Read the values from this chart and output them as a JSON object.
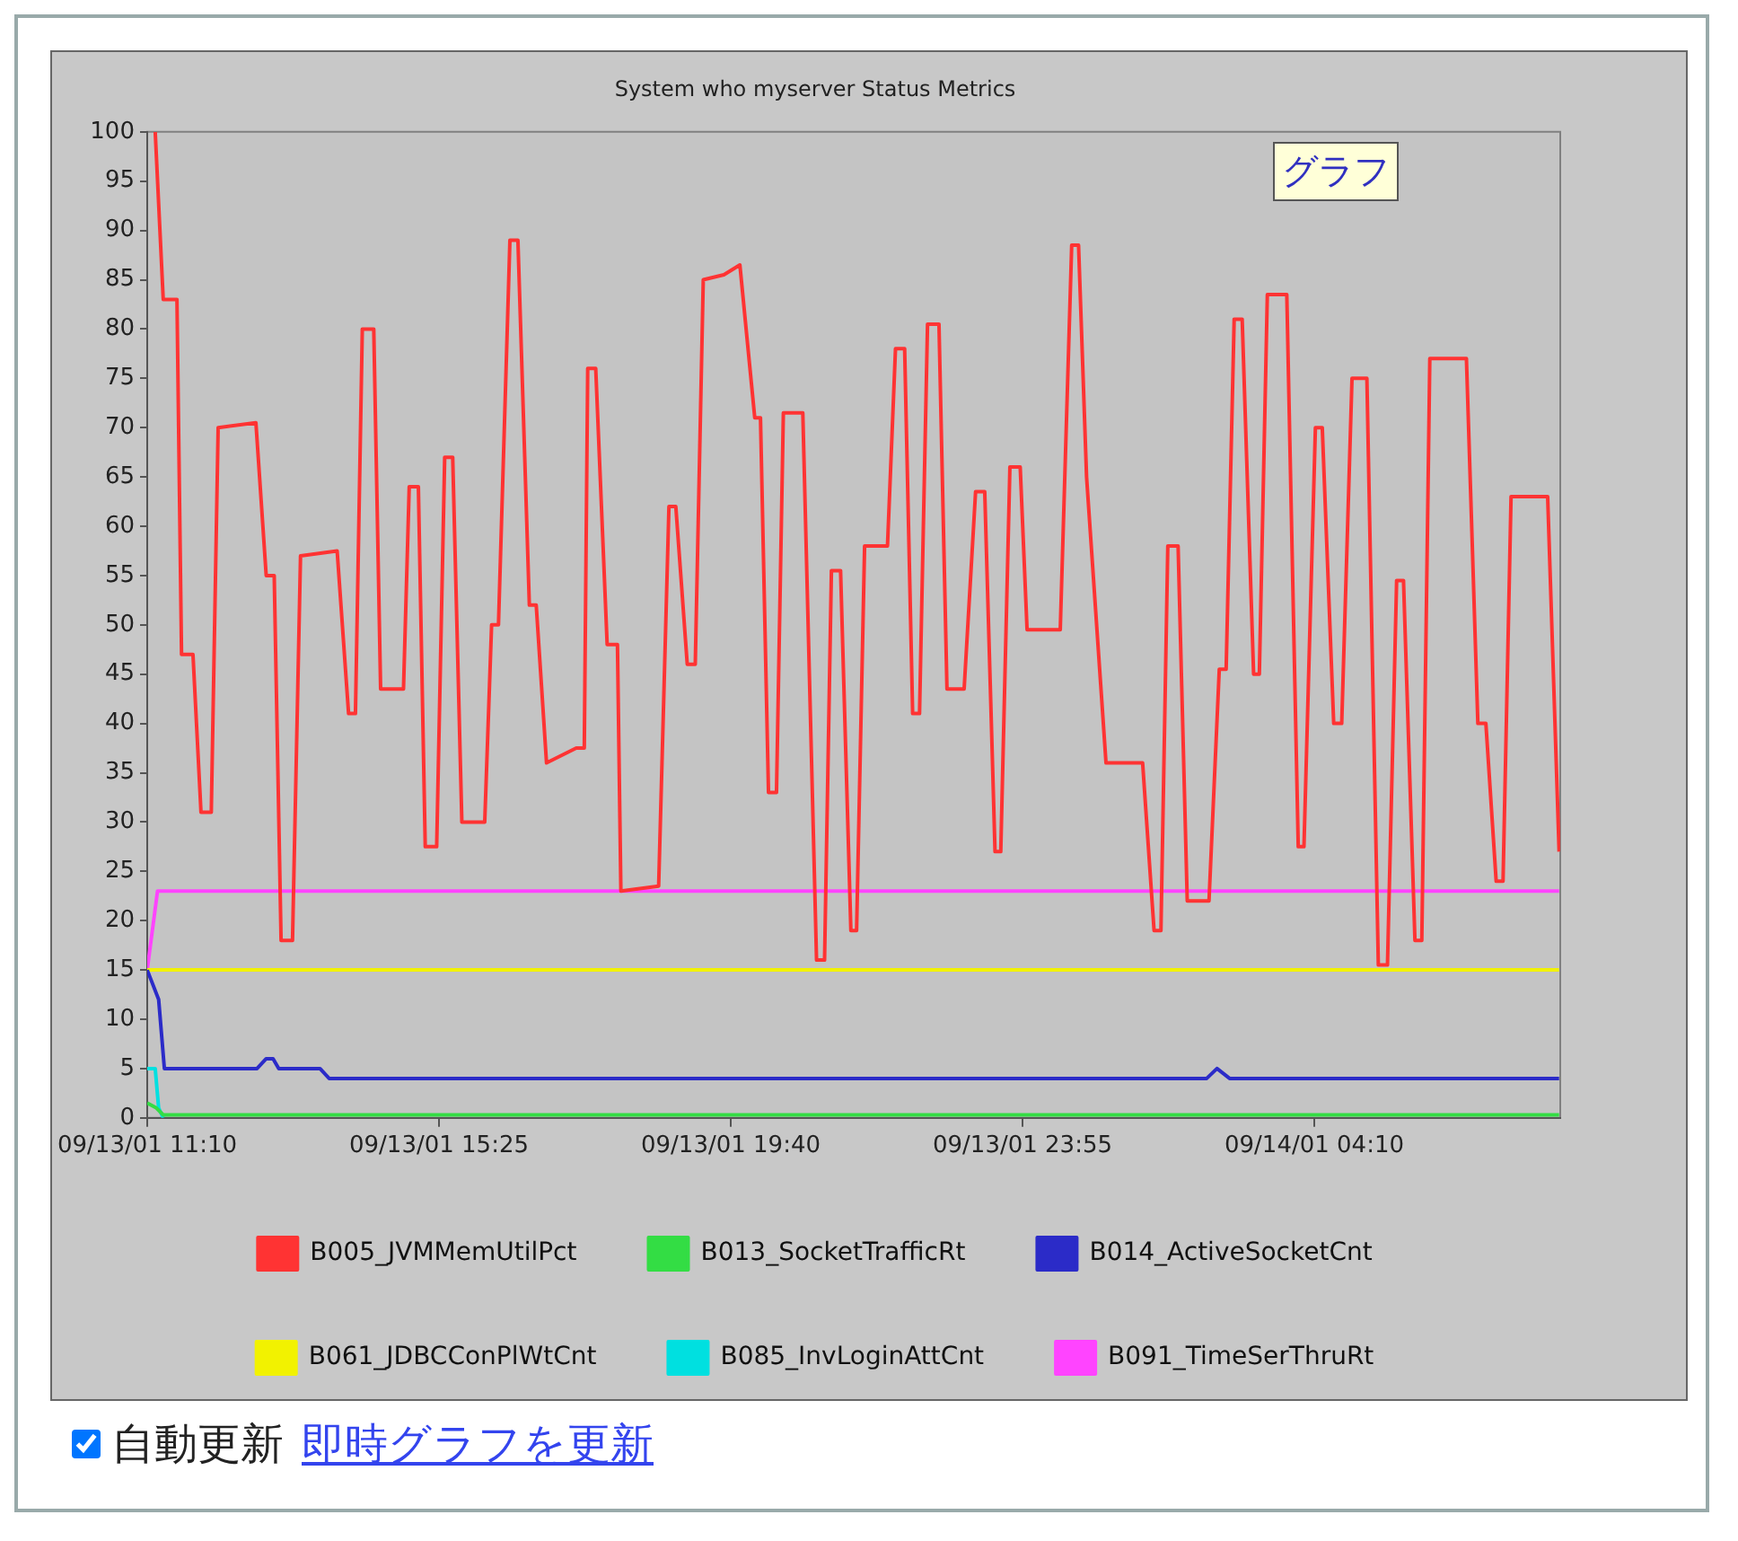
{
  "chart_data": {
    "type": "line",
    "title": "System who myserver Status Metrics",
    "xlim": [
      "--09-13T11:10",
      "--09-14T07:45"
    ],
    "xticks": [
      {
        "value": "--09-13T11:10",
        "label": "09/13/01 11:10"
      },
      {
        "value": "--09-13T15:25",
        "label": "09/13/01 15:25"
      },
      {
        "value": "--09-13T19:40",
        "label": "09/13/01 19:40"
      },
      {
        "value": "--09-13T23:55",
        "label": "09/13/01 23:55"
      },
      {
        "value": "--09-14T04:10",
        "label": "09/14/01 04:10"
      }
    ],
    "ylim": [
      0,
      100
    ],
    "yticks": [
      0,
      5,
      10,
      15,
      20,
      25,
      30,
      35,
      40,
      45,
      50,
      55,
      60,
      65,
      70,
      75,
      80,
      85,
      90,
      95,
      100
    ],
    "grid": false,
    "legend": "bottom",
    "marker": "none",
    "line_style": "solid",
    "annotations": [
      "グラフ",
      "自動更新",
      "即時グラフを更新"
    ],
    "series": [
      {
        "name": "B005_JVMMemUtilPct",
        "color": "#ff3333",
        "x": [
          "--09-13T11:17",
          "--09-13T11:24",
          "--09-13T11:36",
          "--09-13T11:40",
          "--09-13T11:50",
          "--09-13T11:57",
          "--09-13T12:06",
          "--09-13T12:12",
          "--09-13T12:45",
          "--09-13T12:54",
          "--09-13T13:01",
          "--09-13T13:07",
          "--09-13T13:17",
          "--09-13T13:24",
          "--09-13T13:56",
          "--09-13T14:06",
          "--09-13T14:12",
          "--09-13T14:18",
          "--09-13T14:28",
          "--09-13T14:34",
          "--09-13T14:54",
          "--09-13T14:59",
          "--09-13T15:07",
          "--09-13T15:13",
          "--09-13T15:23",
          "--09-13T15:30",
          "--09-13T15:37",
          "--09-13T15:45",
          "--09-13T16:05",
          "--09-13T16:11",
          "--09-13T16:17",
          "--09-13T16:27",
          "--09-13T16:34",
          "--09-13T16:44",
          "--09-13T16:50",
          "--09-13T16:59",
          "--09-13T17:25",
          "--09-13T17:32",
          "--09-13T17:35",
          "--09-13T17:42",
          "--09-13T17:52",
          "--09-13T18:01",
          "--09-13T18:04",
          "--09-13T18:37",
          "--09-13T18:46",
          "--09-13T18:52",
          "--09-13T19:02",
          "--09-13T19:09",
          "--09-13T19:16",
          "--09-13T19:34",
          "--09-13T19:48",
          "--09-13T20:01",
          "--09-13T20:06",
          "--09-13T20:13",
          "--09-13T20:20",
          "--09-13T20:26",
          "--09-13T20:43",
          "--09-13T20:55",
          "--09-13T21:02",
          "--09-13T21:08",
          "--09-13T21:16",
          "--09-13T21:25",
          "--09-13T21:30",
          "--09-13T21:37",
          "--09-13T21:57",
          "--09-13T22:04",
          "--09-13T22:12",
          "--09-13T22:19",
          "--09-13T22:25",
          "--09-13T22:32",
          "--09-13T22:42",
          "--09-13T22:49",
          "--09-13T23:04",
          "--09-13T23:14",
          "--09-13T23:22",
          "--09-13T23:31",
          "--09-13T23:36",
          "--09-13T23:44",
          "--09-13T23:53",
          "--09-13T23:59",
          "--09-14T00:28",
          "--09-14T00:38",
          "--09-14T00:44",
          "--09-14T00:51",
          "--09-14T01:08",
          "--09-14T01:40",
          "--09-14T01:50",
          "--09-14T01:56",
          "--09-14T02:02",
          "--09-14T02:11",
          "--09-14T02:19",
          "--09-14T02:38",
          "--09-14T02:47",
          "--09-14T02:53",
          "--09-14T03:00",
          "--09-14T03:07",
          "--09-14T03:17",
          "--09-14T03:22",
          "--09-14T03:29",
          "--09-14T03:46",
          "--09-14T03:56",
          "--09-14T04:01",
          "--09-14T04:11",
          "--09-14T04:17",
          "--09-14T04:27",
          "--09-14T04:34",
          "--09-14T04:43",
          "--09-14T04:56",
          "--09-14T05:06",
          "--09-14T05:14",
          "--09-14T05:22",
          "--09-14T05:28",
          "--09-14T05:38",
          "--09-14T05:44",
          "--09-14T05:51",
          "--09-14T06:23",
          "--09-14T06:33",
          "--09-14T06:40",
          "--09-14T06:49",
          "--09-14T06:55",
          "--09-14T07:02",
          "--09-14T07:34",
          "--09-14T07:44"
        ],
        "values": [
          100,
          83,
          83,
          47,
          47,
          31,
          31,
          70,
          70.5,
          55,
          55,
          18,
          18,
          57,
          57.5,
          41,
          41,
          80,
          80,
          43.5,
          43.5,
          64,
          64,
          27.5,
          27.5,
          67,
          67,
          30,
          30,
          50,
          50,
          89,
          89,
          52,
          52,
          36,
          37.5,
          37.5,
          76,
          76,
          48,
          48,
          23,
          23.5,
          62,
          62,
          46,
          46,
          85,
          85.5,
          86.5,
          71,
          71,
          33,
          33,
          71.5,
          71.5,
          16,
          16,
          55.5,
          55.5,
          19,
          19,
          58,
          58,
          78,
          78,
          41,
          41,
          80.5,
          80.5,
          43.5,
          43.5,
          63.5,
          63.5,
          27,
          27,
          66,
          66,
          49.5,
          49.5,
          88.5,
          88.5,
          65,
          36,
          36,
          19,
          19,
          58,
          58,
          22,
          22,
          45.5,
          45.5,
          81,
          81,
          45,
          45,
          83.5,
          83.5,
          27.5,
          27.5,
          70,
          70,
          40,
          40,
          75,
          75,
          15.5,
          15.5,
          54.5,
          54.5,
          18,
          18,
          77,
          77,
          40,
          40,
          24,
          24,
          63,
          63,
          27
        ]
      },
      {
        "name": "B013_SocketTrafficRt",
        "color": "#33dd44",
        "x": [
          "--09-13T11:10",
          "--09-13T11:18",
          "--09-13T11:24",
          "--09-14T07:44"
        ],
        "values": [
          1.5,
          1,
          0.3,
          0.3
        ]
      },
      {
        "name": "B014_ActiveSocketCnt",
        "color": "#2b2bc8",
        "x": [
          "--09-13T11:10",
          "--09-13T11:20",
          "--09-13T11:25",
          "--09-13T12:46",
          "--09-13T12:54",
          "--09-13T13:00",
          "--09-13T13:05",
          "--09-13T13:41",
          "--09-13T13:49",
          "--09-14T02:36",
          "--09-14T02:45",
          "--09-14T02:56",
          "--09-14T07:44"
        ],
        "values": [
          15,
          12,
          5,
          5,
          6,
          6,
          5,
          5,
          4,
          4,
          5,
          4,
          4
        ]
      },
      {
        "name": "B061_JDBCConPlWtCnt",
        "color": "#f2f200",
        "x": [
          "--09-13T11:10",
          "--09-14T07:44"
        ],
        "values": [
          15,
          15
        ]
      },
      {
        "name": "B085_InvLoginAttCnt",
        "color": "#00e0e0",
        "x": [
          "--09-13T11:10",
          "--09-13T11:17",
          "--09-13T11:20",
          "--09-13T11:24"
        ],
        "values": [
          5,
          5,
          1,
          0
        ]
      },
      {
        "name": "B091_TimeSerThruRt",
        "color": "#ff44ff",
        "x": [
          "--09-13T11:10",
          "--09-13T11:19",
          "--09-14T07:44"
        ],
        "values": [
          15,
          23,
          23
        ]
      }
    ]
  }
}
